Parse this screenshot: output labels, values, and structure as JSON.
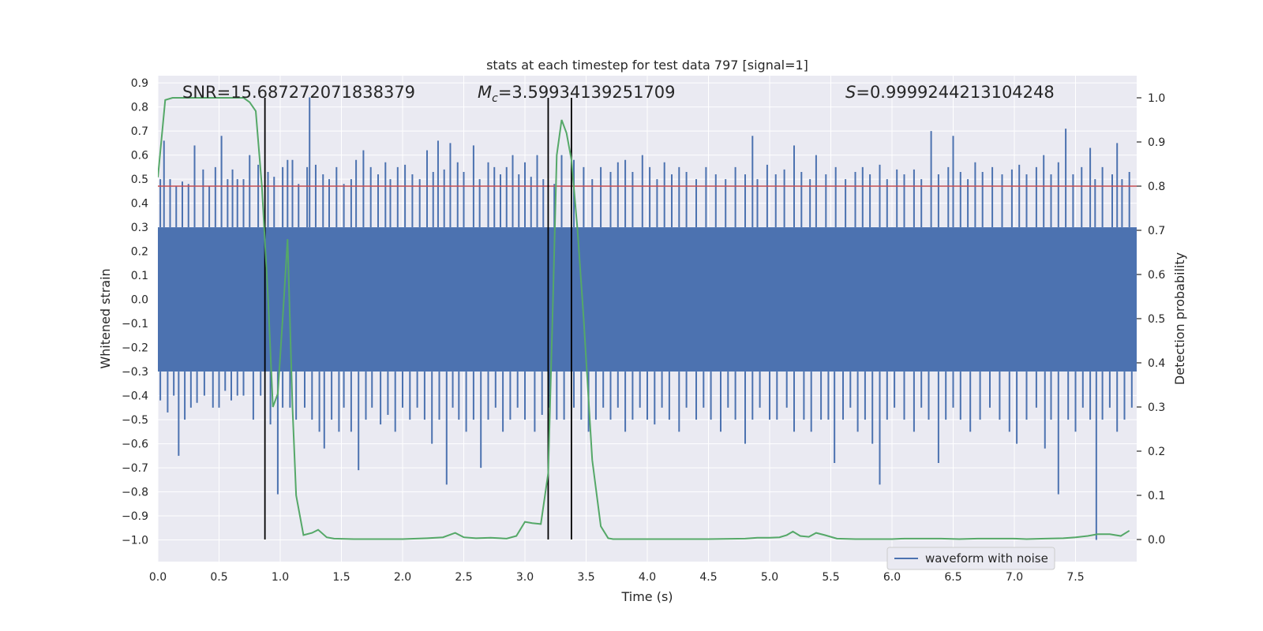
{
  "chart_data": {
    "type": "line",
    "title": "stats at each timestep for test data 797 [signal=1]",
    "xlabel": "Time (s)",
    "ylabel_left": "Whitened strain",
    "ylabel_right": "Detection probability",
    "xlim": [
      0.0,
      8.0
    ],
    "ylim_left": [
      -1.09,
      0.93
    ],
    "ylim_right": [
      -0.05,
      1.05
    ],
    "x_ticks": [
      "0.0",
      "0.5",
      "1.0",
      "1.5",
      "2.0",
      "2.5",
      "3.0",
      "3.5",
      "4.0",
      "4.5",
      "5.0",
      "5.5",
      "6.0",
      "6.5",
      "7.0",
      "7.5"
    ],
    "y_left_ticks": [
      "0.9",
      "0.8",
      "0.7",
      "0.6",
      "0.5",
      "0.4",
      "0.3",
      "0.2",
      "0.1",
      "0.0",
      "−0.1",
      "−0.2",
      "−0.3",
      "−0.4",
      "−0.5",
      "−0.6",
      "−0.7",
      "−0.8",
      "−0.9",
      "−1.0"
    ],
    "y_right_ticks": [
      "1.0",
      "0.9",
      "0.8",
      "0.7",
      "0.6",
      "0.5",
      "0.4",
      "0.3",
      "0.2",
      "0.1",
      "0.0"
    ],
    "annotations": {
      "snr": "SNR=15.687272071838379",
      "mc_symbol": "M",
      "mc_subscript": "c",
      "mc_value": "=3.59934139251709",
      "s_symbol": "S",
      "s_value": "=0.9999244213104248"
    },
    "legend": {
      "label": "waveform with noise",
      "placement": "lower-right"
    },
    "threshold_probability": 0.8,
    "vertical_markers_s": [
      0.875,
      3.19,
      3.38
    ],
    "waveform": {
      "name": "waveform with noise",
      "color": "#4c72b0",
      "band_low": -0.3,
      "band_high": 0.3,
      "peaks": [
        [
          0.02,
          0.5
        ],
        [
          0.05,
          0.66
        ],
        [
          0.1,
          0.5
        ],
        [
          0.15,
          0.47
        ],
        [
          0.2,
          0.49
        ],
        [
          0.25,
          0.48
        ],
        [
          0.3,
          0.64
        ],
        [
          0.37,
          0.54
        ],
        [
          0.42,
          0.47
        ],
        [
          0.47,
          0.55
        ],
        [
          0.52,
          0.68
        ],
        [
          0.57,
          0.5
        ],
        [
          0.61,
          0.54
        ],
        [
          0.65,
          0.5
        ],
        [
          0.7,
          0.5
        ],
        [
          0.75,
          0.6
        ],
        [
          0.82,
          0.56
        ],
        [
          0.9,
          0.53
        ],
        [
          0.95,
          0.51
        ],
        [
          1.02,
          0.55
        ],
        [
          1.06,
          0.58
        ],
        [
          1.1,
          0.58
        ],
        [
          1.15,
          0.48
        ],
        [
          1.22,
          0.55
        ],
        [
          1.24,
          0.84
        ],
        [
          1.29,
          0.56
        ],
        [
          1.35,
          0.52
        ],
        [
          1.4,
          0.5
        ],
        [
          1.46,
          0.55
        ],
        [
          1.52,
          0.48
        ],
        [
          1.58,
          0.5
        ],
        [
          1.62,
          0.58
        ],
        [
          1.68,
          0.62
        ],
        [
          1.74,
          0.55
        ],
        [
          1.8,
          0.52
        ],
        [
          1.86,
          0.57
        ],
        [
          1.9,
          0.5
        ],
        [
          1.96,
          0.55
        ],
        [
          2.02,
          0.56
        ],
        [
          2.08,
          0.52
        ],
        [
          2.14,
          0.5
        ],
        [
          2.2,
          0.62
        ],
        [
          2.25,
          0.53
        ],
        [
          2.29,
          0.66
        ],
        [
          2.34,
          0.54
        ],
        [
          2.39,
          0.65
        ],
        [
          2.45,
          0.57
        ],
        [
          2.5,
          0.53
        ],
        [
          2.58,
          0.64
        ],
        [
          2.63,
          0.5
        ],
        [
          2.7,
          0.57
        ],
        [
          2.75,
          0.55
        ],
        [
          2.8,
          0.52
        ],
        [
          2.85,
          0.55
        ],
        [
          2.9,
          0.6
        ],
        [
          2.95,
          0.52
        ],
        [
          3.0,
          0.57
        ],
        [
          3.05,
          0.51
        ],
        [
          3.1,
          0.6
        ],
        [
          3.15,
          0.5
        ],
        [
          3.24,
          0.48
        ],
        [
          3.3,
          0.6
        ],
        [
          3.4,
          0.58
        ],
        [
          3.48,
          0.55
        ],
        [
          3.55,
          0.5
        ],
        [
          3.62,
          0.55
        ],
        [
          3.7,
          0.53
        ],
        [
          3.76,
          0.57
        ],
        [
          3.82,
          0.58
        ],
        [
          3.88,
          0.53
        ],
        [
          3.96,
          0.6
        ],
        [
          4.02,
          0.55
        ],
        [
          4.08,
          0.5
        ],
        [
          4.14,
          0.57
        ],
        [
          4.2,
          0.52
        ],
        [
          4.26,
          0.55
        ],
        [
          4.32,
          0.53
        ],
        [
          4.4,
          0.5
        ],
        [
          4.48,
          0.55
        ],
        [
          4.56,
          0.52
        ],
        [
          4.64,
          0.5
        ],
        [
          4.72,
          0.55
        ],
        [
          4.8,
          0.52
        ],
        [
          4.86,
          0.68
        ],
        [
          4.9,
          0.5
        ],
        [
          4.98,
          0.56
        ],
        [
          5.05,
          0.52
        ],
        [
          5.12,
          0.54
        ],
        [
          5.2,
          0.64
        ],
        [
          5.26,
          0.53
        ],
        [
          5.33,
          0.5
        ],
        [
          5.38,
          0.6
        ],
        [
          5.46,
          0.52
        ],
        [
          5.54,
          0.55
        ],
        [
          5.62,
          0.5
        ],
        [
          5.7,
          0.53
        ],
        [
          5.76,
          0.55
        ],
        [
          5.82,
          0.52
        ],
        [
          5.9,
          0.56
        ],
        [
          5.96,
          0.5
        ],
        [
          6.04,
          0.54
        ],
        [
          6.1,
          0.52
        ],
        [
          6.18,
          0.54
        ],
        [
          6.24,
          0.5
        ],
        [
          6.32,
          0.7
        ],
        [
          6.38,
          0.52
        ],
        [
          6.46,
          0.55
        ],
        [
          6.5,
          0.68
        ],
        [
          6.56,
          0.53
        ],
        [
          6.62,
          0.5
        ],
        [
          6.68,
          0.57
        ],
        [
          6.74,
          0.53
        ],
        [
          6.82,
          0.55
        ],
        [
          6.9,
          0.52
        ],
        [
          6.98,
          0.54
        ],
        [
          7.04,
          0.56
        ],
        [
          7.1,
          0.52
        ],
        [
          7.18,
          0.55
        ],
        [
          7.24,
          0.6
        ],
        [
          7.3,
          0.52
        ],
        [
          7.36,
          0.57
        ],
        [
          7.42,
          0.71
        ],
        [
          7.48,
          0.52
        ],
        [
          7.55,
          0.55
        ],
        [
          7.62,
          0.63
        ],
        [
          7.66,
          0.5
        ],
        [
          7.72,
          0.55
        ],
        [
          7.8,
          0.52
        ],
        [
          7.84,
          0.65
        ],
        [
          7.88,
          0.5
        ],
        [
          7.94,
          0.53
        ]
      ],
      "troughs": [
        [
          0.02,
          -0.42
        ],
        [
          0.08,
          -0.47
        ],
        [
          0.13,
          -0.4
        ],
        [
          0.17,
          -0.65
        ],
        [
          0.22,
          -0.5
        ],
        [
          0.27,
          -0.45
        ],
        [
          0.32,
          -0.43
        ],
        [
          0.38,
          -0.4
        ],
        [
          0.45,
          -0.45
        ],
        [
          0.5,
          -0.45
        ],
        [
          0.55,
          -0.38
        ],
        [
          0.6,
          -0.42
        ],
        [
          0.65,
          -0.4
        ],
        [
          0.7,
          -0.4
        ],
        [
          0.78,
          -0.5
        ],
        [
          0.84,
          -0.4
        ],
        [
          0.92,
          -0.52
        ],
        [
          0.98,
          -0.81
        ],
        [
          1.02,
          -0.45
        ],
        [
          1.08,
          -0.45
        ],
        [
          1.13,
          -0.5
        ],
        [
          1.2,
          -0.45
        ],
        [
          1.26,
          -0.5
        ],
        [
          1.32,
          -0.55
        ],
        [
          1.36,
          -0.62
        ],
        [
          1.42,
          -0.5
        ],
        [
          1.48,
          -0.55
        ],
        [
          1.52,
          -0.45
        ],
        [
          1.58,
          -0.55
        ],
        [
          1.64,
          -0.71
        ],
        [
          1.7,
          -0.5
        ],
        [
          1.75,
          -0.45
        ],
        [
          1.82,
          -0.52
        ],
        [
          1.88,
          -0.48
        ],
        [
          1.94,
          -0.55
        ],
        [
          2.0,
          -0.45
        ],
        [
          2.06,
          -0.5
        ],
        [
          2.12,
          -0.45
        ],
        [
          2.18,
          -0.5
        ],
        [
          2.24,
          -0.6
        ],
        [
          2.3,
          -0.5
        ],
        [
          2.36,
          -0.77
        ],
        [
          2.41,
          -0.45
        ],
        [
          2.46,
          -0.5
        ],
        [
          2.52,
          -0.55
        ],
        [
          2.58,
          -0.5
        ],
        [
          2.64,
          -0.7
        ],
        [
          2.7,
          -0.5
        ],
        [
          2.76,
          -0.45
        ],
        [
          2.82,
          -0.55
        ],
        [
          2.88,
          -0.5
        ],
        [
          2.94,
          -0.45
        ],
        [
          3.0,
          -0.5
        ],
        [
          3.08,
          -0.55
        ],
        [
          3.14,
          -0.48
        ],
        [
          3.2,
          -0.45
        ],
        [
          3.26,
          -0.5
        ],
        [
          3.32,
          -0.5
        ],
        [
          3.4,
          -0.45
        ],
        [
          3.46,
          -0.5
        ],
        [
          3.52,
          -0.55
        ],
        [
          3.58,
          -0.5
        ],
        [
          3.64,
          -0.45
        ],
        [
          3.7,
          -0.5
        ],
        [
          3.76,
          -0.45
        ],
        [
          3.82,
          -0.55
        ],
        [
          3.88,
          -0.5
        ],
        [
          3.94,
          -0.45
        ],
        [
          4.0,
          -0.5
        ],
        [
          4.06,
          -0.52
        ],
        [
          4.12,
          -0.45
        ],
        [
          4.18,
          -0.5
        ],
        [
          4.26,
          -0.55
        ],
        [
          4.32,
          -0.45
        ],
        [
          4.4,
          -0.5
        ],
        [
          4.46,
          -0.45
        ],
        [
          4.52,
          -0.5
        ],
        [
          4.6,
          -0.55
        ],
        [
          4.66,
          -0.45
        ],
        [
          4.72,
          -0.5
        ],
        [
          4.8,
          -0.6
        ],
        [
          4.86,
          -0.5
        ],
        [
          4.92,
          -0.45
        ],
        [
          5.0,
          -0.5
        ],
        [
          5.06,
          -0.5
        ],
        [
          5.14,
          -0.45
        ],
        [
          5.2,
          -0.55
        ],
        [
          5.28,
          -0.5
        ],
        [
          5.34,
          -0.55
        ],
        [
          5.42,
          -0.5
        ],
        [
          5.48,
          -0.5
        ],
        [
          5.53,
          -0.68
        ],
        [
          5.6,
          -0.5
        ],
        [
          5.66,
          -0.45
        ],
        [
          5.72,
          -0.55
        ],
        [
          5.78,
          -0.5
        ],
        [
          5.84,
          -0.6
        ],
        [
          5.9,
          -0.77
        ],
        [
          5.96,
          -0.5
        ],
        [
          6.02,
          -0.45
        ],
        [
          6.1,
          -0.5
        ],
        [
          6.18,
          -0.55
        ],
        [
          6.24,
          -0.45
        ],
        [
          6.3,
          -0.5
        ],
        [
          6.38,
          -0.68
        ],
        [
          6.44,
          -0.5
        ],
        [
          6.5,
          -0.45
        ],
        [
          6.56,
          -0.5
        ],
        [
          6.64,
          -0.55
        ],
        [
          6.72,
          -0.5
        ],
        [
          6.8,
          -0.45
        ],
        [
          6.88,
          -0.5
        ],
        [
          6.96,
          -0.55
        ],
        [
          7.02,
          -0.6
        ],
        [
          7.1,
          -0.5
        ],
        [
          7.18,
          -0.45
        ],
        [
          7.25,
          -0.62
        ],
        [
          7.3,
          -0.5
        ],
        [
          7.36,
          -0.81
        ],
        [
          7.44,
          -0.5
        ],
        [
          7.5,
          -0.55
        ],
        [
          7.56,
          -0.45
        ],
        [
          7.62,
          -0.5
        ],
        [
          7.67,
          -1.0
        ],
        [
          7.72,
          -0.5
        ],
        [
          7.78,
          -0.45
        ],
        [
          7.84,
          -0.55
        ],
        [
          7.9,
          -0.5
        ],
        [
          7.96,
          -0.45
        ]
      ]
    },
    "probability": {
      "name": "detection probability",
      "color": "#55a868",
      "x": [
        0.0,
        0.06,
        0.12,
        0.25,
        0.5,
        0.7,
        0.75,
        0.8,
        0.85,
        0.9,
        0.94,
        0.98,
        1.02,
        1.06,
        1.1,
        1.13,
        1.19,
        1.26,
        1.31,
        1.38,
        1.44,
        1.6,
        2.0,
        2.2,
        2.33,
        2.43,
        2.5,
        2.6,
        2.72,
        2.85,
        2.93,
        3.0,
        3.06,
        3.13,
        3.19,
        3.23,
        3.26,
        3.3,
        3.34,
        3.38,
        3.43,
        3.48,
        3.55,
        3.62,
        3.68,
        3.72,
        3.85,
        4.1,
        4.5,
        4.8,
        4.9,
        5.0,
        5.08,
        5.14,
        5.19,
        5.25,
        5.32,
        5.38,
        5.45,
        5.55,
        5.7,
        5.85,
        6.0,
        6.1,
        6.25,
        6.4,
        6.55,
        6.7,
        6.85,
        7.0,
        7.1,
        7.25,
        7.4,
        7.5,
        7.6,
        7.68,
        7.78,
        7.87,
        7.94
      ],
      "y": [
        0.82,
        0.995,
        1.0,
        1.0,
        1.0,
        1.0,
        0.99,
        0.97,
        0.8,
        0.55,
        0.3,
        0.33,
        0.5,
        0.68,
        0.3,
        0.1,
        0.01,
        0.015,
        0.022,
        0.005,
        0.002,
        0.001,
        0.001,
        0.003,
        0.005,
        0.015,
        0.005,
        0.003,
        0.004,
        0.002,
        0.008,
        0.04,
        0.037,
        0.035,
        0.15,
        0.55,
        0.87,
        0.95,
        0.92,
        0.86,
        0.7,
        0.5,
        0.18,
        0.03,
        0.003,
        0.001,
        0.001,
        0.001,
        0.001,
        0.002,
        0.004,
        0.004,
        0.005,
        0.01,
        0.018,
        0.008,
        0.006,
        0.015,
        0.01,
        0.002,
        0.001,
        0.001,
        0.001,
        0.002,
        0.002,
        0.002,
        0.001,
        0.002,
        0.002,
        0.002,
        0.001,
        0.002,
        0.003,
        0.005,
        0.008,
        0.012,
        0.012,
        0.008,
        0.02
      ]
    }
  }
}
